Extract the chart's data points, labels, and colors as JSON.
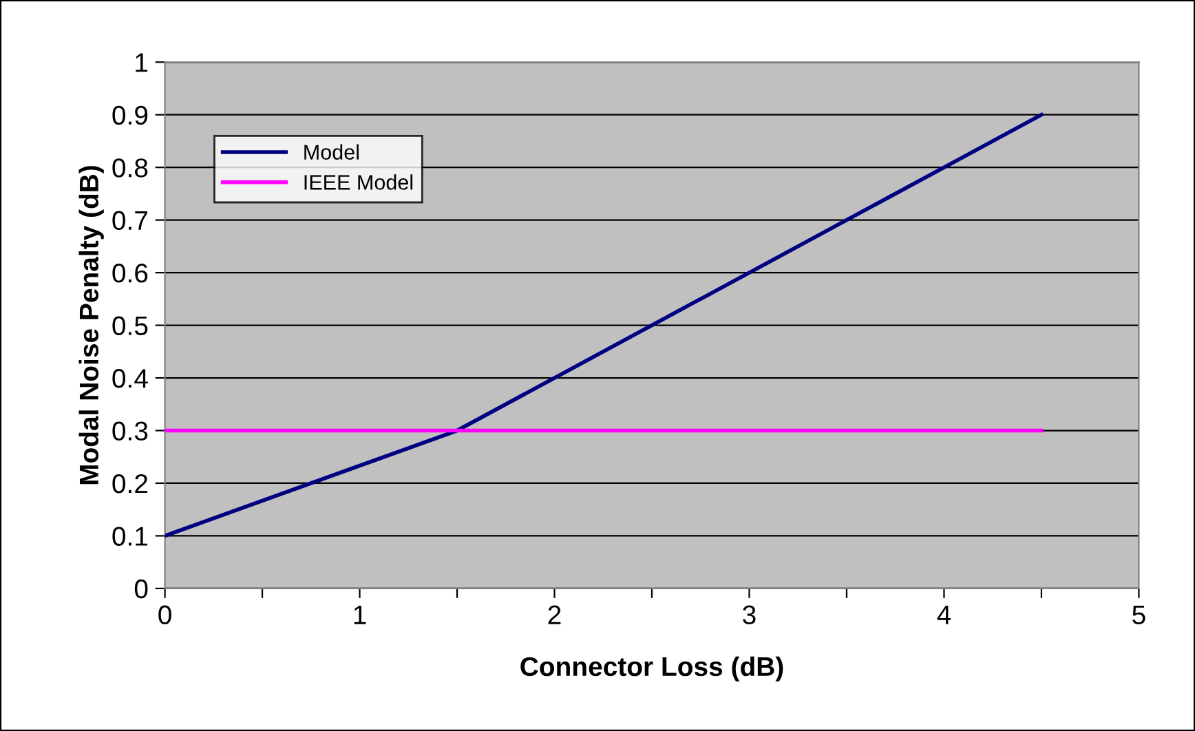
{
  "chart_data": {
    "type": "line",
    "xlabel": "Connector Loss (dB)",
    "ylabel": "Modal Noise Penalty (dB)",
    "series": [
      {
        "name": "Model",
        "color": "#000080",
        "x": [
          0,
          1.5,
          4.5
        ],
        "values": [
          0.1,
          0.3,
          0.9
        ]
      },
      {
        "name": "IEEE Model",
        "color": "#ff00ff",
        "x": [
          0,
          4.5
        ],
        "values": [
          0.3,
          0.3
        ]
      }
    ],
    "xlim": [
      0,
      5
    ],
    "xticks": [
      0,
      {
        "value": 0.5,
        "label": null
      },
      1,
      {
        "value": 1.5,
        "label": null
      },
      2,
      {
        "value": 2.5,
        "label": null
      },
      3,
      {
        "value": 3.5,
        "label": null
      },
      4,
      {
        "value": 4.5,
        "label": null
      },
      5
    ],
    "ylim": [
      0,
      1
    ],
    "yticks": [
      0,
      0.1,
      0.2,
      0.3,
      0.4,
      0.5,
      0.6,
      0.7,
      0.8,
      0.9,
      1
    ],
    "grid": "y",
    "legend": "top left",
    "marker": "none",
    "line_style": "solid"
  }
}
